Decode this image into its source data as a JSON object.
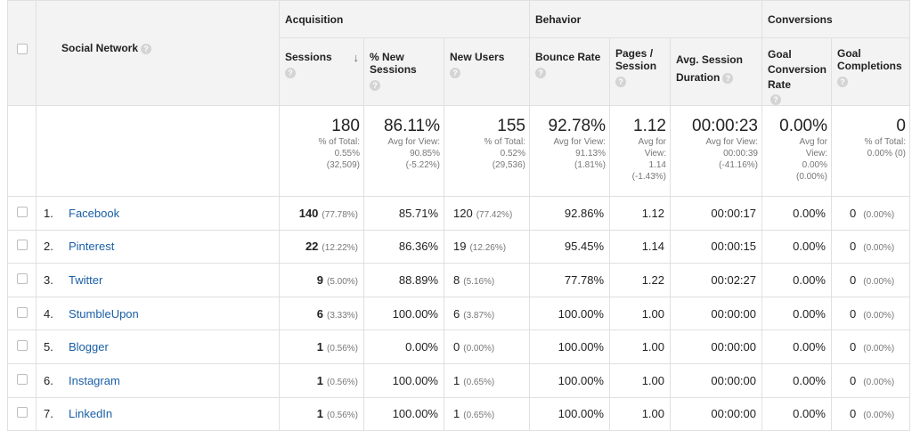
{
  "groups": {
    "acquisition": "Acquisition",
    "behavior": "Behavior",
    "conversions": "Conversions"
  },
  "columns": {
    "social_network": "Social Network",
    "sessions": "Sessions",
    "pct_new_sessions": "% New Sessions",
    "new_users": "New Users",
    "bounce_rate": "Bounce Rate",
    "pages_session": "Pages / Session",
    "avg_session_duration": "Avg. Session Duration",
    "goal_conversion_rate": "Goal Conversion Rate",
    "goal_completions": "Goal Completions"
  },
  "help_glyph": "?",
  "sort_glyph": "↓",
  "totals": {
    "sessions": {
      "value": "180",
      "l1": "% of Total:",
      "l2": "0.55%",
      "l3": "(32,509)"
    },
    "pct_new_sessions": {
      "value": "86.11%",
      "l1": "Avg for View:",
      "l2": "90.85%",
      "l3": "(-5.22%)"
    },
    "new_users": {
      "value": "155",
      "l1": "% of Total:",
      "l2": "0.52%",
      "l3": "(29,536)"
    },
    "bounce_rate": {
      "value": "92.78%",
      "l1": "Avg for View:",
      "l2": "91.13%",
      "l3": "(1.81%)"
    },
    "pages_session": {
      "value": "1.12",
      "l1": "Avg for",
      "l2": "View:",
      "l3": "1.14",
      "l4": "(-1.43%)"
    },
    "avg_session_duration": {
      "value": "00:00:23",
      "l1": "Avg for View:",
      "l2": "00:00:39",
      "l3": "(-41.16%)"
    },
    "goal_conversion_rate": {
      "value": "0.00%",
      "l1": "Avg for",
      "l2": "View:",
      "l3": "0.00%",
      "l4": "(0.00%)"
    },
    "goal_completions": {
      "value": "0",
      "l1": "% of Total:",
      "l2": "0.00% (0)"
    }
  },
  "rows": [
    {
      "idx": "1.",
      "network": "Facebook",
      "sessions": "140",
      "sessions_pct": "(77.78%)",
      "pct_new": "85.71%",
      "new_users": "120",
      "new_users_pct": "(77.42%)",
      "bounce": "92.86%",
      "pages": "1.12",
      "duration": "00:00:17",
      "conv_rate": "0.00%",
      "completions": "0",
      "completions_pct": "(0.00%)"
    },
    {
      "idx": "2.",
      "network": "Pinterest",
      "sessions": "22",
      "sessions_pct": "(12.22%)",
      "pct_new": "86.36%",
      "new_users": "19",
      "new_users_pct": "(12.26%)",
      "bounce": "95.45%",
      "pages": "1.14",
      "duration": "00:00:15",
      "conv_rate": "0.00%",
      "completions": "0",
      "completions_pct": "(0.00%)"
    },
    {
      "idx": "3.",
      "network": "Twitter",
      "sessions": "9",
      "sessions_pct": "(5.00%)",
      "pct_new": "88.89%",
      "new_users": "8",
      "new_users_pct": "(5.16%)",
      "bounce": "77.78%",
      "pages": "1.22",
      "duration": "00:02:27",
      "conv_rate": "0.00%",
      "completions": "0",
      "completions_pct": "(0.00%)"
    },
    {
      "idx": "4.",
      "network": "StumbleUpon",
      "sessions": "6",
      "sessions_pct": "(3.33%)",
      "pct_new": "100.00%",
      "new_users": "6",
      "new_users_pct": "(3.87%)",
      "bounce": "100.00%",
      "pages": "1.00",
      "duration": "00:00:00",
      "conv_rate": "0.00%",
      "completions": "0",
      "completions_pct": "(0.00%)"
    },
    {
      "idx": "5.",
      "network": "Blogger",
      "sessions": "1",
      "sessions_pct": "(0.56%)",
      "pct_new": "0.00%",
      "new_users": "0",
      "new_users_pct": "(0.00%)",
      "bounce": "100.00%",
      "pages": "1.00",
      "duration": "00:00:00",
      "conv_rate": "0.00%",
      "completions": "0",
      "completions_pct": "(0.00%)"
    },
    {
      "idx": "6.",
      "network": "Instagram",
      "sessions": "1",
      "sessions_pct": "(0.56%)",
      "pct_new": "100.00%",
      "new_users": "1",
      "new_users_pct": "(0.65%)",
      "bounce": "100.00%",
      "pages": "1.00",
      "duration": "00:00:00",
      "conv_rate": "0.00%",
      "completions": "0",
      "completions_pct": "(0.00%)"
    },
    {
      "idx": "7.",
      "network": "LinkedIn",
      "sessions": "1",
      "sessions_pct": "(0.56%)",
      "pct_new": "100.00%",
      "new_users": "1",
      "new_users_pct": "(0.65%)",
      "bounce": "100.00%",
      "pages": "1.00",
      "duration": "00:00:00",
      "conv_rate": "0.00%",
      "completions": "0",
      "completions_pct": "(0.00%)"
    }
  ],
  "colors": {
    "link": "#1a5fa6",
    "header_bg": "#f3f3f3",
    "border": "#e0e0e0"
  }
}
